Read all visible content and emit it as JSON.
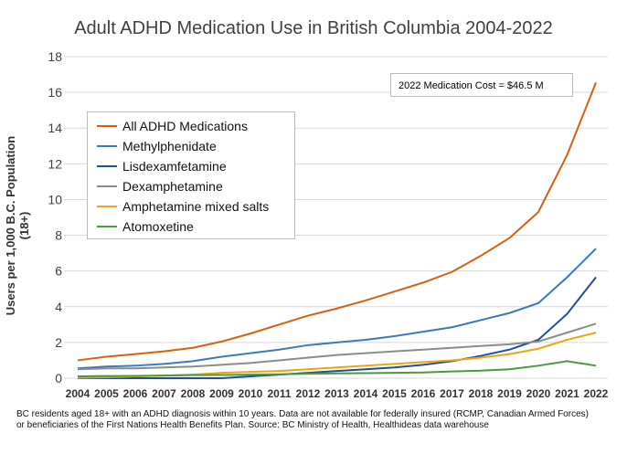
{
  "chart_data": {
    "type": "line",
    "title": "Adult ADHD Medication Use in British Columbia 2004-2022",
    "xlabel": "",
    "ylabel": "Users per 1,000 B.C. Population (18+)",
    "ylim": [
      0,
      18
    ],
    "yticks": [
      "0",
      "2",
      "4",
      "6",
      "8",
      "10",
      "12",
      "14",
      "16",
      "18"
    ],
    "categories": [
      "2004",
      "2005",
      "2006",
      "2007",
      "2008",
      "2009",
      "2010",
      "2011",
      "2012",
      "2013",
      "2014",
      "2015",
      "2016",
      "2017",
      "2018",
      "2019",
      "2020",
      "2021",
      "2022"
    ],
    "grid": true,
    "legend_position": "upper-left",
    "series": [
      {
        "name": "All ADHD Medications",
        "color": "#d95f0e",
        "values": [
          1.0,
          1.2,
          1.35,
          1.5,
          1.7,
          2.05,
          2.5,
          3.0,
          3.5,
          3.9,
          4.35,
          4.85,
          5.35,
          5.95,
          6.85,
          7.85,
          9.3,
          12.5,
          16.55
        ]
      },
      {
        "name": "Methylphenidate",
        "color": "#3a78c0",
        "values": [
          0.55,
          0.65,
          0.7,
          0.8,
          0.95,
          1.2,
          1.4,
          1.6,
          1.85,
          2.0,
          2.15,
          2.35,
          2.6,
          2.85,
          3.25,
          3.65,
          4.2,
          5.65,
          7.25
        ]
      },
      {
        "name": " Lisdexamfetamine",
        "color": "#1f4ea3",
        "values": [
          0,
          0,
          0,
          0,
          0,
          0,
          0.1,
          0.2,
          0.3,
          0.4,
          0.5,
          0.6,
          0.75,
          0.95,
          1.25,
          1.6,
          2.15,
          3.6,
          5.65
        ]
      },
      {
        "name": "Dexamphetamine",
        "color": "#8c8c8c",
        "values": [
          0.5,
          0.55,
          0.55,
          0.6,
          0.65,
          0.75,
          0.85,
          1.0,
          1.15,
          1.3,
          1.4,
          1.5,
          1.6,
          1.7,
          1.8,
          1.9,
          2.05,
          2.55,
          3.05
        ]
      },
      {
        "name": "Amphetamine mixed salts",
        "color": "#f0a30a",
        "values": [
          0.02,
          0.05,
          0.1,
          0.15,
          0.2,
          0.3,
          0.35,
          0.4,
          0.5,
          0.6,
          0.7,
          0.8,
          0.9,
          1.0,
          1.15,
          1.35,
          1.65,
          2.15,
          2.55
        ]
      },
      {
        "name": "Atomoxetine",
        "color": "#4a9a3a",
        "values": [
          0.1,
          0.12,
          0.13,
          0.15,
          0.17,
          0.18,
          0.2,
          0.22,
          0.25,
          0.27,
          0.28,
          0.3,
          0.32,
          0.38,
          0.42,
          0.5,
          0.7,
          0.95,
          0.7
        ]
      }
    ],
    "annotation": "2022 Medication Cost = $46.5 M",
    "footnote": [
      "BC residents aged 18+ with an ADHD diagnosis within 10 years. Data are not available for federally insured (RCMP, Canadian Armed Forces)",
      "or beneficiaries of the First Nations Health Benefits Plan. Source: BC Ministry of Health, Healthideas data warehouse"
    ]
  }
}
